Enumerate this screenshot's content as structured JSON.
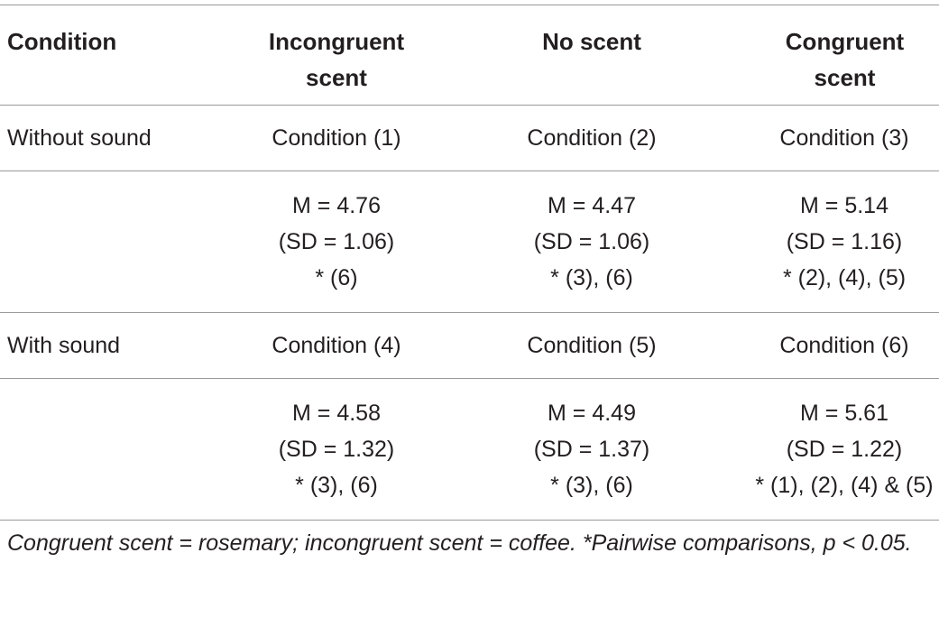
{
  "table": {
    "header": [
      "Condition",
      "Incongruent scent",
      "No scent",
      "Congruent scent"
    ],
    "rows": [
      {
        "label": "Without sound",
        "cells": [
          "Condition (1)",
          "Condition (2)",
          "Condition (3)"
        ]
      },
      {
        "cells": [
          [
            "M = 4.76",
            "(SD = 1.06)",
            "* (6)"
          ],
          [
            "M = 4.47",
            "(SD = 1.06)",
            "* (3), (6)"
          ],
          [
            "M = 5.14",
            "(SD = 1.16)",
            "* (2), (4), (5)"
          ]
        ]
      },
      {
        "label": "With sound",
        "cells": [
          "Condition (4)",
          "Condition (5)",
          "Condition (6)"
        ]
      },
      {
        "cells": [
          [
            "M = 4.58",
            "(SD = 1.32)",
            "* (3), (6)"
          ],
          [
            "M = 4.49",
            "(SD = 1.37)",
            "* (3), (6)"
          ],
          [
            "M = 5.61",
            "(SD = 1.22)",
            "* (1), (2), (4) & (5)"
          ]
        ]
      }
    ],
    "footnote": "Congruent scent = rosemary; incongruent scent = coffee. *Pairwise comparisons, p < 0.05."
  }
}
